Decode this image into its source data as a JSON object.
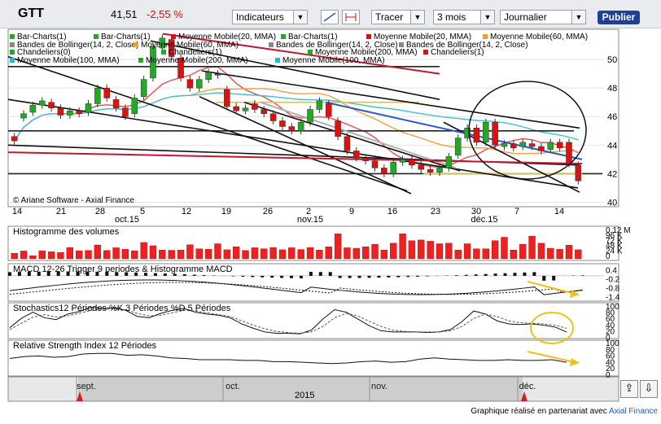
{
  "header": {
    "ticker": "GTT",
    "price": "41,51",
    "change": "-2,55 %",
    "indicators_label": "Indicateurs",
    "tracer_label": "Tracer",
    "period_value": "3 mois",
    "interval_value": "Journalier",
    "publish_label": "Publier"
  },
  "legend_items": [
    {
      "label": "Bar-Charts(1)",
      "color": "#22aa22"
    },
    {
      "label": "Bar-Charts(1)",
      "color": "#22aa22"
    },
    {
      "label": "Moyenne Mobile(20, MMA)",
      "color": "#dd1111"
    },
    {
      "label": "Bar-Charts(1)",
      "color": "#22aa22"
    },
    {
      "label": "Moyenne Mobile(20, MMA)",
      "color": "#dd1111"
    },
    {
      "label": "Moyenne Mobile(60, MMA)",
      "color": "#f0a020"
    },
    {
      "label": "Bandes de Bollinger(14, 2, Close)",
      "color": "#888888"
    },
    {
      "label": "Moyenne Mobile(60, MMA)",
      "color": "#f0a020"
    },
    {
      "label": "Bandes de Bollinger(14, 2, Close)",
      "color": "#888888"
    },
    {
      "label": "Bandes de Bollinger(14, 2, Close)",
      "color": "#888888"
    },
    {
      "label": "Chandeliers(0)",
      "color": "#22aa22"
    },
    {
      "label": "Chandeliers(1)",
      "color": "#22aa22"
    },
    {
      "label": "Moyenne Mobile(200, MMA)",
      "color": "#22aa22"
    },
    {
      "label": "Chandeliers(1)",
      "color": "#dd1111"
    },
    {
      "label": "Moyenne Mobile(100, MMA)",
      "color": "#22bbcc"
    },
    {
      "label": "Moyenne Mobile(200, MMA)",
      "color": "#22aa22"
    },
    {
      "label": "Moyenne Mobile(100, MMA)",
      "color": "#22bbcc"
    }
  ],
  "copyright": "© Ariane Software - Axial Finance",
  "x_axis": {
    "days": [
      "14",
      "21",
      "28",
      "5",
      "12",
      "19",
      "26",
      "2",
      "9",
      "16",
      "23",
      "30",
      "7",
      "14"
    ],
    "months": [
      "oct.15",
      "nov.15",
      "déc.15"
    ]
  },
  "timeline": {
    "months": [
      "sept.",
      "oct.",
      "nov.",
      "déc."
    ],
    "year": "2015"
  },
  "footer": {
    "text": "Graphique réalisé en partenariat avec",
    "brand": "Axial Finance"
  },
  "chart_data": [
    {
      "type": "candlestick",
      "title": "GTT",
      "y_ticks": [
        "50",
        "48",
        "46",
        "44",
        "42",
        "40"
      ],
      "ylim": [
        39.8,
        52
      ],
      "up_color": "#22aa22",
      "down_color": "#dd1111",
      "candles": [
        {
          "o": 44.6,
          "c": 44.3
        },
        {
          "o": 45.9,
          "c": 46.2
        },
        {
          "o": 46.3,
          "c": 46.8
        },
        {
          "o": 46.8,
          "c": 47.1
        },
        {
          "o": 47.0,
          "c": 46.6
        },
        {
          "o": 46.6,
          "c": 46.1
        },
        {
          "o": 46.1,
          "c": 46.4
        },
        {
          "o": 46.4,
          "c": 46.2
        },
        {
          "o": 46.3,
          "c": 46.9
        },
        {
          "o": 46.9,
          "c": 48.0
        },
        {
          "o": 48.0,
          "c": 47.3
        },
        {
          "o": 47.2,
          "c": 46.6
        },
        {
          "o": 46.6,
          "c": 46.0
        },
        {
          "o": 46.2,
          "c": 47.3
        },
        {
          "o": 47.4,
          "c": 48.6
        },
        {
          "o": 48.7,
          "c": 50.9
        },
        {
          "o": 50.8,
          "c": 51.5
        },
        {
          "o": 51.4,
          "c": 50.2
        },
        {
          "o": 50.1,
          "c": 48.7
        },
        {
          "o": 48.6,
          "c": 48.0
        },
        {
          "o": 48.0,
          "c": 48.6
        },
        {
          "o": 48.6,
          "c": 49.1
        },
        {
          "o": 49.0,
          "c": 48.9
        },
        {
          "o": 47.9,
          "c": 46.7
        },
        {
          "o": 46.7,
          "c": 46.4
        },
        {
          "o": 46.4,
          "c": 46.6
        },
        {
          "o": 46.9,
          "c": 46.5
        },
        {
          "o": 46.5,
          "c": 46.2
        },
        {
          "o": 46.2,
          "c": 45.7
        },
        {
          "o": 45.7,
          "c": 45.3
        },
        {
          "o": 45.3,
          "c": 45.0
        },
        {
          "o": 45.0,
          "c": 45.6
        },
        {
          "o": 45.6,
          "c": 46.5
        },
        {
          "o": 46.5,
          "c": 47.1
        },
        {
          "o": 46.9,
          "c": 46.0
        },
        {
          "o": 45.7,
          "c": 44.6
        },
        {
          "o": 44.6,
          "c": 43.6
        },
        {
          "o": 43.6,
          "c": 43.1
        },
        {
          "o": 43.1,
          "c": 42.9
        },
        {
          "o": 42.9,
          "c": 42.4
        },
        {
          "o": 42.4,
          "c": 42.0
        },
        {
          "o": 42.0,
          "c": 42.8
        },
        {
          "o": 42.8,
          "c": 43.0
        },
        {
          "o": 43.0,
          "c": 42.6
        },
        {
          "o": 42.6,
          "c": 42.3
        },
        {
          "o": 42.3,
          "c": 42.1
        },
        {
          "o": 42.1,
          "c": 42.4
        },
        {
          "o": 42.4,
          "c": 43.2
        },
        {
          "o": 43.3,
          "c": 44.5
        },
        {
          "o": 44.5,
          "c": 45.2
        },
        {
          "o": 45.2,
          "c": 44.2
        },
        {
          "o": 44.2,
          "c": 45.6
        },
        {
          "o": 45.6,
          "c": 44.0
        },
        {
          "o": 43.9,
          "c": 44.1
        },
        {
          "o": 44.1,
          "c": 43.8
        },
        {
          "o": 43.9,
          "c": 44.2
        },
        {
          "o": 44.1,
          "c": 43.9
        },
        {
          "o": 43.9,
          "c": 43.6
        },
        {
          "o": 43.7,
          "c": 44.2
        },
        {
          "o": 44.2,
          "c": 43.8
        },
        {
          "o": 44.2,
          "c": 42.7
        },
        {
          "o": 42.6,
          "c": 41.5
        }
      ]
    },
    {
      "type": "bar",
      "title": "Histogramme des volumes",
      "y_ticks": [
        "0.12 M",
        "96 K",
        "72 K",
        "48 K",
        "24 K",
        "0"
      ],
      "ylim": [
        0,
        120000
      ],
      "values": [
        22000,
        31000,
        12000,
        32000,
        28000,
        25000,
        45000,
        32000,
        33000,
        55000,
        33000,
        44000,
        38000,
        32000,
        65000,
        52000,
        35000,
        34000,
        35000,
        56000,
        40000,
        38000,
        60000,
        36000,
        48000,
        33000,
        44000,
        40000,
        45000,
        36000,
        44000,
        37000,
        45000,
        35000,
        48000,
        100000,
        44000,
        42000,
        48000,
        58000,
        35000,
        62000,
        100000,
        72000,
        75000,
        70000,
        60000,
        62000,
        35000,
        60000,
        40000,
        40000,
        72000,
        86000,
        35000,
        58000,
        90000,
        62000,
        42000,
        38000,
        54000,
        36000
      ]
    },
    {
      "type": "line",
      "title": "MACD 12-26   Trigger 9 periodes & Histogramme MACD",
      "y_ticks": [
        "0.4",
        "-0.2",
        "-0.8",
        "-1.4"
      ],
      "ylim": [
        -1.6,
        0.6
      ]
    },
    {
      "type": "line",
      "title": "Stochastics12 Périodes   %K 3 Périodes   %D 5 Périodes",
      "y_ticks": [
        "100",
        "80",
        "60",
        "40",
        "20",
        "0"
      ],
      "ylim": [
        0,
        100
      ],
      "series": [
        {
          "name": "%K 3 Périodes",
          "values": [
            30,
            60,
            80,
            62,
            56,
            74,
            82,
            96,
            92,
            94,
            86,
            66,
            62,
            76,
            86,
            92,
            80,
            74,
            70,
            62,
            42,
            28,
            16,
            12,
            12,
            10,
            22,
            58,
            88,
            80,
            58,
            36,
            20,
            16,
            16,
            16,
            14,
            16,
            24,
            50,
            84,
            74,
            52,
            42,
            40,
            42,
            38,
            32,
            16
          ]
        },
        {
          "name": "%D 5 Périodes",
          "values": [
            24,
            44,
            64,
            72,
            64,
            68,
            76,
            86,
            90,
            90,
            88,
            76,
            68,
            70,
            78,
            86,
            84,
            78,
            72,
            66,
            52,
            38,
            26,
            18,
            14,
            12,
            16,
            34,
            62,
            76,
            68,
            50,
            34,
            22,
            18,
            16,
            16,
            16,
            20,
            34,
            60,
            74,
            66,
            52,
            46,
            44,
            42,
            38,
            28
          ]
        }
      ]
    },
    {
      "type": "line",
      "title": "Relative Strength Index 12 Périodes",
      "y_ticks": [
        "100",
        "80",
        "60",
        "40",
        "20",
        "0"
      ],
      "ylim": [
        0,
        100
      ],
      "series": [
        {
          "name": "Relative Strength Index 12 Périodes",
          "values": [
            50,
            56,
            58,
            54,
            56,
            64,
            66,
            66,
            60,
            62,
            58,
            52,
            50,
            46,
            46,
            46,
            44,
            44,
            40,
            40,
            38,
            36,
            34,
            36,
            40,
            42,
            38,
            40,
            48,
            52,
            48,
            46,
            44,
            44,
            46,
            44,
            44,
            46,
            38
          ]
        }
      ]
    }
  ]
}
